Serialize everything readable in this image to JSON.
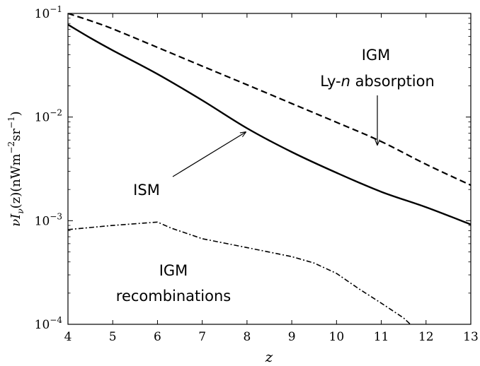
{
  "chart_data": {
    "type": "line",
    "xlabel": "z",
    "ylabel": {
      "prefix": "νI",
      "sub_nu": "ν",
      "paren_z": "(z)",
      "units_open": "(nWm",
      "units_exp1": "−2",
      "units_mid": "sr",
      "units_exp2": "−1",
      "units_close": ")"
    },
    "xlim": [
      4,
      13
    ],
    "ylim": [
      0.0001,
      0.1
    ],
    "yscale": "log",
    "x_ticks": [
      "4",
      "5",
      "6",
      "7",
      "8",
      "9",
      "10",
      "11",
      "12",
      "13"
    ],
    "y_ticks": [
      {
        "base": "10",
        "exp": "−1",
        "value": 0.1
      },
      {
        "base": "10",
        "exp": "−2",
        "value": 0.01
      },
      {
        "base": "10",
        "exp": "−3",
        "value": 0.001
      },
      {
        "base": "10",
        "exp": "−4",
        "value": 0.0001
      }
    ],
    "grid": false,
    "series": [
      {
        "name": "IGM Ly-n absorption",
        "style": "dashed",
        "x": [
          4,
          4.5,
          5,
          6,
          7,
          8,
          9,
          10,
          11,
          12,
          13
        ],
        "y": [
          0.1,
          0.085,
          0.071,
          0.047,
          0.031,
          0.0205,
          0.0135,
          0.0089,
          0.0058,
          0.0035,
          0.0022
        ]
      },
      {
        "name": "ISM",
        "style": "solid",
        "x": [
          4,
          4.5,
          5,
          6,
          7,
          8,
          9,
          10,
          11,
          12,
          13
        ],
        "y": [
          0.078,
          0.058,
          0.044,
          0.026,
          0.0145,
          0.0078,
          0.0046,
          0.0029,
          0.0019,
          0.00135,
          0.00092
        ]
      },
      {
        "name": "IGM recombinations",
        "style": "dashdot",
        "x": [
          4,
          5,
          6,
          6.3,
          7,
          8,
          9,
          9.5,
          10,
          10.5,
          11,
          11.5,
          11.65
        ],
        "y": [
          0.00082,
          0.0009,
          0.00097,
          0.00085,
          0.00067,
          0.00055,
          0.00045,
          0.00039,
          0.00031,
          0.00022,
          0.00016,
          0.000115,
          0.0001
        ]
      }
    ],
    "annotations": {
      "igm_lyn_line1": "IGM",
      "igm_lyn_line2_prefix": "Ly-",
      "igm_lyn_line2_n": "n",
      "igm_lyn_line2_suffix": " absorption",
      "ism": "ISM",
      "igm_recomb_line1": "IGM",
      "igm_recomb_line2": "recombinations"
    }
  }
}
